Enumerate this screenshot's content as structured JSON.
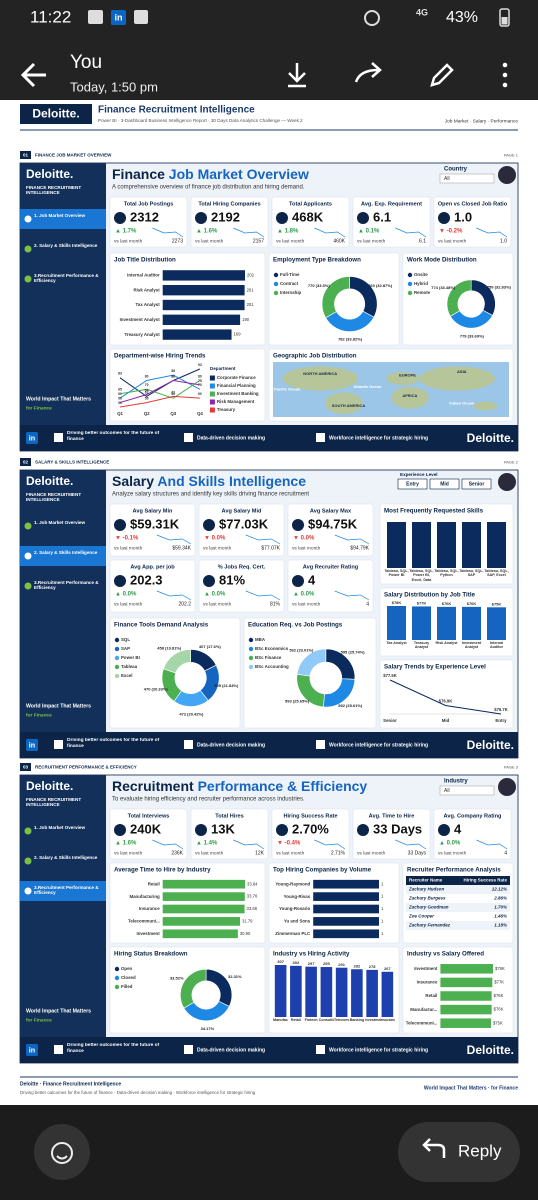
{
  "status_bar": {
    "time": "11:22",
    "network": "4G",
    "battery": "43%"
  },
  "icons": {
    "linkedin": "in"
  },
  "message": {
    "sender": "You",
    "time": "Today, 1:50 pm"
  },
  "report": {
    "brand": "Deloitte.",
    "title": "Finance Recruitment Intelligence",
    "subtitle": "Power BI · 3-Dashboard Business Intelligence Report · 30 Days Data Analytics Challenge — Week 2",
    "nav": "Job Market · Salary · Performance"
  },
  "sidebar": {
    "brand": "Deloitte.",
    "product": "FINANCE RECRUITMENT INTELLIGENCE",
    "nav": [
      "1. Job Market Overview",
      "2. Salary & Skills Intelligence",
      "3.Recruitment Performance & Efficiency"
    ],
    "impact": "World Impact That Matters",
    "impact_sub": "for Finance"
  },
  "footer": {
    "f1": "Driving better outcomes for the future of finance",
    "f2": "Data-driven decision making",
    "f3": "Workforce intelligence for strategic hiring",
    "brand": "Deloitte."
  },
  "kpi_caption": "vs last month",
  "pages": [
    {
      "num": "01",
      "section": "FINANCE JOB MARKET OVERVIEW",
      "page_label": "PAGE 1",
      "title_a": "Finance ",
      "title_b": "Job Market Overview",
      "subtitle": "A comprehensive overview of finance job distribution and hiring demand.",
      "filter": {
        "label": "Country",
        "value": "All"
      },
      "kpis": [
        {
          "label": "Total Job Postings",
          "value": "2312",
          "delta": "▲ 1.7%",
          "prev": "2273"
        },
        {
          "label": "Total Hiring Companies",
          "value": "2192",
          "delta": "▲ 1.6%",
          "prev": "2157"
        },
        {
          "label": "Total Applicants",
          "value": "468K",
          "delta": "▲ 1.8%",
          "prev": "460K"
        },
        {
          "label": "Avg. Exp. Requirement",
          "value": "6.1",
          "delta": "▲ 0.1%",
          "prev": "6.1"
        },
        {
          "label": "Open vs Closed Job Ratio",
          "value": "1.0",
          "delta": "▼ -0.2%",
          "prev": "1.0"
        }
      ],
      "charts": [
        {
          "kind": "hbar",
          "title": "Job Title Distribution",
          "categories": [
            "Internal Auditor",
            "Risk Analyst",
            "Tax Analyst",
            "Investment Analyst",
            "Treasury Analyst"
          ],
          "values": [
            202,
            201,
            201,
            190,
            169
          ],
          "color": "#0b2a5e"
        },
        {
          "kind": "donut",
          "title": "Employment Type Breakdown",
          "categories": [
            "Full-Time",
            "Contract",
            "Internship"
          ],
          "values": [
            760,
            782,
            770
          ],
          "value_labels": [
            "760 (32.87%)",
            "782 (33.82%)",
            "770 (33.3%)"
          ],
          "colors": [
            "#0b2a5e",
            "#1e88e5",
            "#4caf50"
          ]
        },
        {
          "kind": "donut",
          "title": "Work Mode Distribution",
          "categories": [
            "Onsite",
            "Hybrid",
            "Remote"
          ],
          "values": [
            759,
            779,
            774
          ],
          "value_labels": [
            "759 (32.83%)",
            "779 (33.69%)",
            "774 (33.48%)"
          ],
          "colors": [
            "#0b2a5e",
            "#1e88e5",
            "#4caf50"
          ]
        },
        {
          "kind": "line",
          "title": "Department-wise Hiring Trends",
          "legend_title": "Department",
          "categories": [
            "Q1",
            "Q2",
            "Q3",
            "Q4"
          ],
          "series": [
            {
              "name": "Corporate Finance",
              "color": "#0b2a5e",
              "values": [
                83,
                62,
                80,
                93
              ]
            },
            {
              "name": "Financial Planning",
              "color": "#1e88e5",
              "values": [
                60,
                80,
                86,
                70
              ]
            },
            {
              "name": "Investment Banking",
              "color": "#4caf50",
              "values": [
                65,
                70,
                60,
                80
              ]
            },
            {
              "name": "Risk Management",
              "color": "#8e24aa",
              "values": [
                55,
                64,
                80,
                75
              ]
            },
            {
              "name": "Treasury",
              "color": "#e53935",
              "values": [
                50,
                55,
                62,
                60
              ]
            }
          ]
        },
        {
          "kind": "map",
          "title": "Geographic Job Distribution",
          "labels": [
            "NORTH AMERICA",
            "EUROPE",
            "ASIA",
            "Pacific Ocean",
            "Atlantic Ocean",
            "AFRICA",
            "SOUTH AMERICA",
            "Indian Ocean"
          ]
        }
      ]
    },
    {
      "num": "02",
      "section": "SALARY & SKILLS INTELLIGENCE",
      "page_label": "PAGE 2",
      "title_a": "Salary ",
      "title_b": "And Skills Intelligence",
      "subtitle": "Analyze salary structures and identify key skills driving finance recruitment",
      "filter": {
        "label": "Experience Level",
        "options": [
          "Entry",
          "Mid",
          "Senior"
        ]
      },
      "kpis": [
        {
          "label": "Avg Salary Min",
          "value": "$59.31K",
          "delta": "▼ -0.1%",
          "prev": "$59.34K"
        },
        {
          "label": "Avg Salary Mid",
          "value": "$77.03K",
          "delta": "▼ 0.0%",
          "prev": "$77.07K"
        },
        {
          "label": "Avg Salary Max",
          "value": "$94.75K",
          "delta": "▼ 0.0%",
          "prev": "$94.79K"
        },
        {
          "label": "Avg App. per job",
          "value": "202.3",
          "delta": "▲ 0.0%",
          "prev": "202.2"
        },
        {
          "label": "% Jobs Req. Cert.",
          "value": "81%",
          "delta": "▲ 0.0%",
          "prev": "81%"
        },
        {
          "label": "Avg Recruiter Rating",
          "value": "4",
          "delta": "▲ 0.0%",
          "prev": "4"
        }
      ],
      "charts": [
        {
          "kind": "vbar",
          "title": "Most Frequently Requested Skills",
          "categories": [
            "Tableau, SQL, Power BI",
            "Tableau, SQL, Power BI, Excel, Data",
            "Tableau, SQL, Python",
            "Tableau, SQL, SAP",
            "Tableau, SQL, SAP, Excel"
          ],
          "values": [
            12,
            12,
            12,
            12,
            12
          ],
          "color": "#0b2a5e"
        },
        {
          "kind": "vbar",
          "title": "Salary Distribution by Job Title",
          "categories": [
            "Tax Analyst",
            "Treasury Analyst",
            "Risk Analyst",
            "Investment Analyst",
            "Internal Auditor"
          ],
          "values": [
            78,
            77,
            76,
            76,
            75
          ],
          "value_labels": [
            "$78K",
            "$77K",
            "$76K",
            "$76K",
            "$75K"
          ],
          "color": "#1565c0"
        },
        {
          "kind": "line",
          "title": "Salary Trends by Experience Level",
          "categories": [
            "Senior",
            "Mid",
            "Entry"
          ],
          "values": [
            77.5,
            76.9,
            76.7
          ],
          "value_labels": [
            "$77.5K",
            "$76.9K",
            "$76.7K"
          ],
          "color": "#0b2a5e"
        },
        {
          "kind": "donut",
          "title": "Finance Tools Demand Analysis",
          "categories": [
            "SQL",
            "SAP",
            "Power BI",
            "Tableau",
            "Excel"
          ],
          "values": [
            407,
            505,
            472,
            470,
            458
          ],
          "value_labels": [
            "407 (17.6%)",
            "505 (21.84%)",
            "472 (20.42%)",
            "470 (20.33%)",
            "458 (19.81%)"
          ],
          "colors": [
            "#0b2a5e",
            "#1565c0",
            "#42a5f5",
            "#4caf50",
            "#a5d6a7"
          ]
        },
        {
          "kind": "donut",
          "title": "Education Req. vs Job Postings",
          "categories": [
            "MBA",
            "BSc Economics",
            "BSc Finance",
            "BSc Accounting"
          ],
          "values": [
            595,
            592,
            593,
            532
          ],
          "value_labels": [
            "595 (25.74%)",
            "592 (25.61%)",
            "593 (25.65%)",
            "532 (23.01%)"
          ],
          "colors": [
            "#0b2a5e",
            "#1e88e5",
            "#4caf50",
            "#90caf9"
          ]
        }
      ]
    },
    {
      "num": "03",
      "section": "RECRUITMENT PERFORMANCE & EFFICIENCY",
      "page_label": "PAGE 3",
      "title_a": "Recruitment ",
      "title_b": "Performance & Efficiency",
      "subtitle": "To evaluate hiring efficiency and recruiter performance across industries.",
      "filter": {
        "label": "Industry",
        "value": "All"
      },
      "kpis": [
        {
          "label": "Total Interviews",
          "value": "240K",
          "delta": "▲ 1.6%",
          "prev": "236K"
        },
        {
          "label": "Total Hires",
          "value": "13K",
          "delta": "▲ 1.4%",
          "prev": "12K"
        },
        {
          "label": "Hiring Success Rate",
          "value": "2.70%",
          "delta": "▼ -0.4%",
          "prev": "2.71%"
        },
        {
          "label": "Avg. Time to Hire",
          "value": "33 Days",
          "prev": "33 Days"
        },
        {
          "label": "Avg. Company Rating",
          "value": "4",
          "delta": "▲ 0.0%",
          "prev": "4"
        }
      ],
      "charts": [
        {
          "kind": "hbar",
          "title": "Average Time to Hire by Industry",
          "categories": [
            "Retail",
            "Manufacturing",
            "Insurance",
            "Telecommuni...",
            "Investment"
          ],
          "values": [
            33.84,
            33.76,
            33.66,
            31.79,
            30.9
          ],
          "value_labels": [
            "33.84",
            "33.76",
            "33.66",
            "31.79",
            "30.90"
          ],
          "color": "#4caf50"
        },
        {
          "kind": "hbar",
          "title": "Top Hiring Companies by Volume",
          "categories": [
            "Young-Raymond",
            "Young-Rivas",
            "Young-Rosario",
            "Yu and Sons",
            "Zimmerman PLC"
          ],
          "values": [
            1,
            1,
            1,
            1,
            1
          ],
          "color": "#0b2a5e"
        },
        {
          "kind": "table",
          "title": "Recruiter Performance Analysis",
          "columns": [
            "Recruiter Name",
            "Hiring Success Rate"
          ],
          "rows": [
            [
              "Zachary Hudson",
              "12.12%"
            ],
            [
              "Zachary Burgess",
              "2.86%"
            ],
            [
              "Zachary Goodman",
              "1.70%"
            ],
            [
              "Zoe Cooper",
              "1.46%"
            ],
            [
              "Zachary Fernandez",
              "1.18%"
            ]
          ]
        },
        {
          "kind": "donut",
          "title": "Hiring Status Breakdown",
          "categories": [
            "Open",
            "Closed",
            "Filled"
          ],
          "values": [
            32.31,
            34.17,
            33.52
          ],
          "value_labels": [
            "32.31%",
            "34.17%",
            "33.52%"
          ],
          "colors": [
            "#0b2a5e",
            "#1e88e5",
            "#4caf50"
          ]
        },
        {
          "kind": "vbar",
          "title": "Industry vs Hiring Activity",
          "categories": [
            "Manufactur...",
            "Retail",
            "Fintech",
            "Consulting",
            "Telecommuni...",
            "Banking",
            "Investment",
            "Insurance"
          ],
          "values": [
            307,
            302,
            297,
            295,
            291,
            282,
            278,
            267
          ],
          "show_values": true,
          "color": "#1e3fae"
        },
        {
          "kind": "hbar",
          "title": "Industry vs Salary Offered",
          "categories": [
            "Investment",
            "Insurance",
            "Retail",
            "Manufactur...",
            "Telecommuni..."
          ],
          "values": [
            78,
            77,
            76,
            76,
            75
          ],
          "value_labels": [
            "$78K",
            "$77K",
            "$76K",
            "$76K",
            "$75K"
          ],
          "color": "#4caf50"
        }
      ]
    }
  ],
  "report_footer": {
    "title": "Deloitte · Finance Recruitment Intelligence",
    "tagline": "Driving better outcomes for the future of finance · Data-driven decision making · Workforce intelligence for strategic hiring",
    "impact": "World Impact That Matters · for Finance"
  },
  "reply": "Reply"
}
